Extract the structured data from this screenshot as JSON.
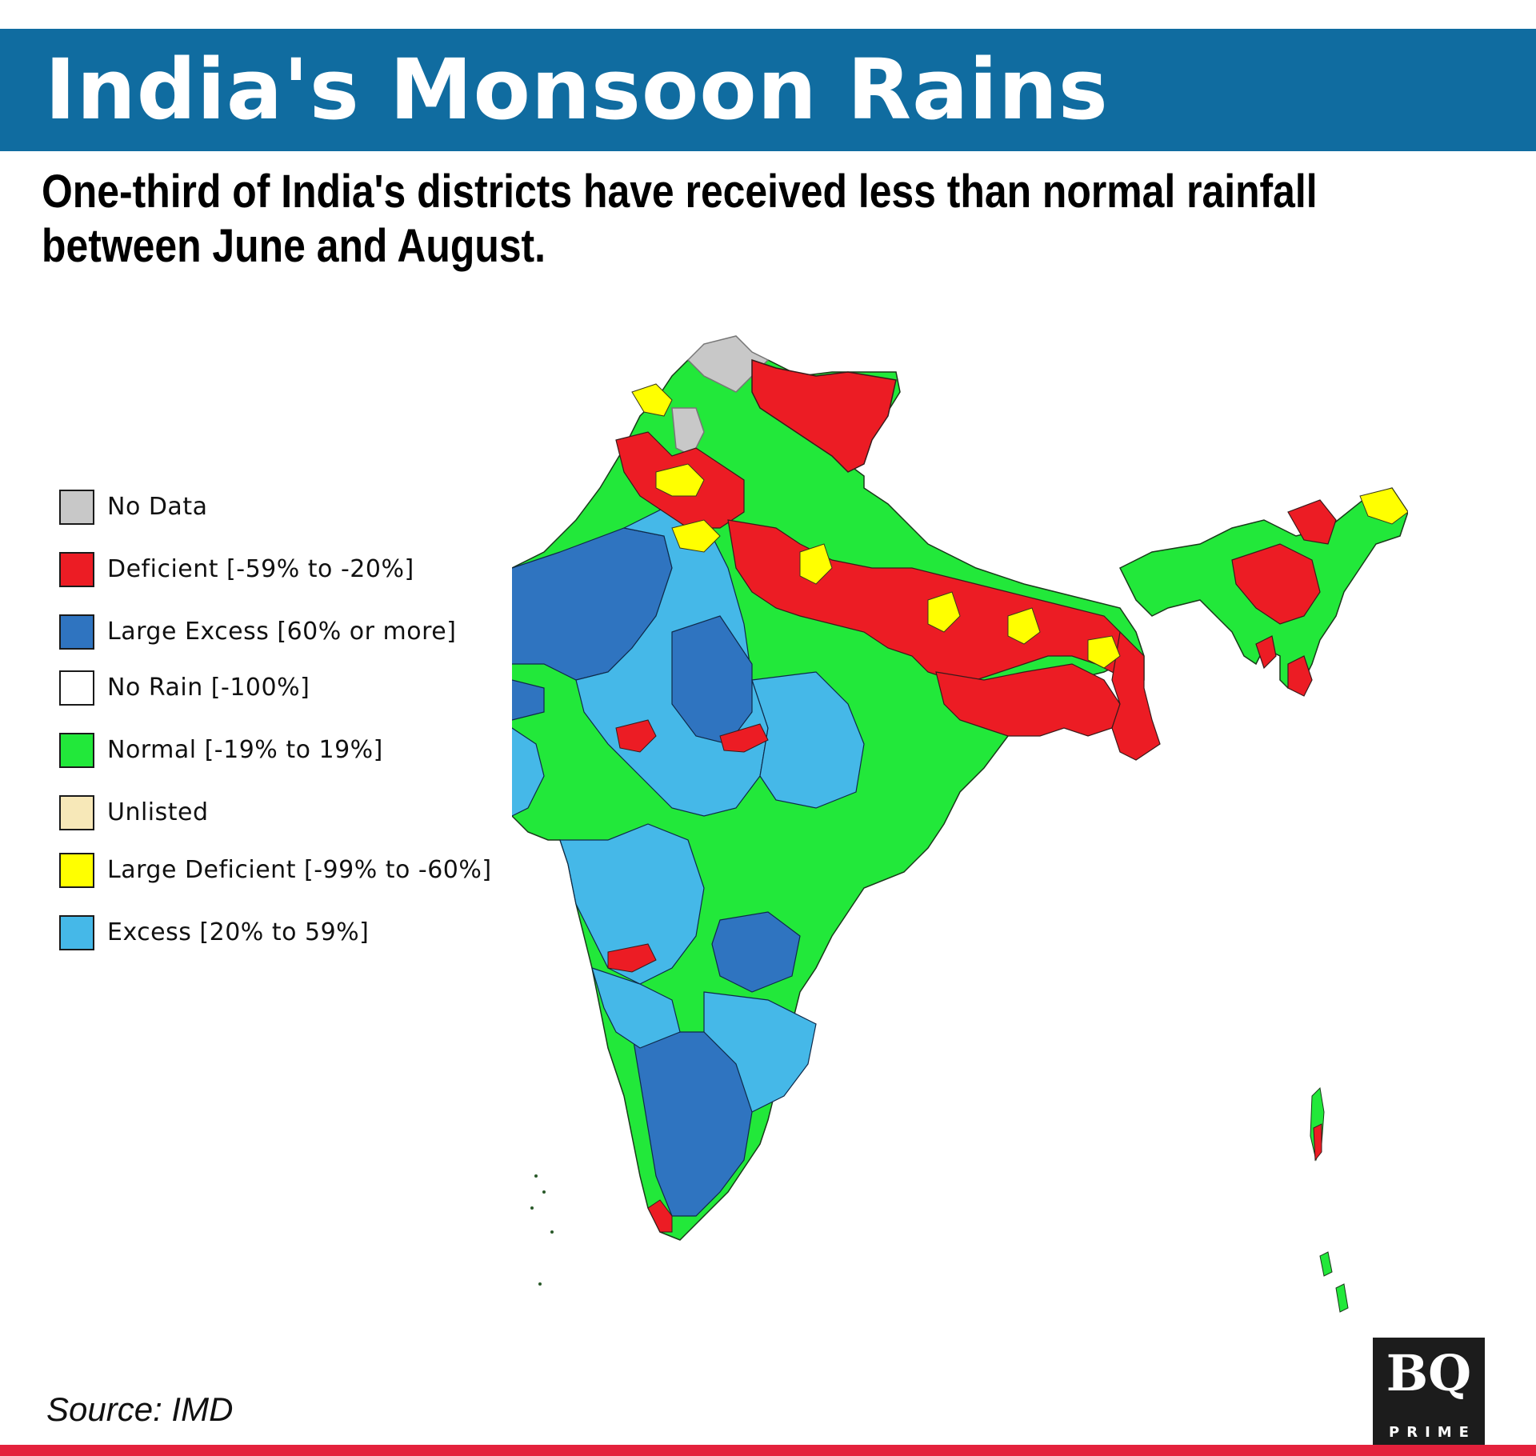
{
  "header": {
    "title": "India's Monsoon Rains",
    "subtitle_line1": "One-third of India's districts have received less than normal rainfall",
    "subtitle_line2": "between June and August."
  },
  "legend": [
    {
      "label": "No Data",
      "color": "#c8c8c8"
    },
    {
      "label": "Deficient [-59% to -20%]",
      "color": "#ec1c24"
    },
    {
      "label": "Large Excess [60% or more]",
      "color": "#2f74c0"
    },
    {
      "label": "No Rain [-100%]",
      "color": "#ffffff"
    },
    {
      "label": "Normal [-19% to 19%]",
      "color": "#22e83a"
    },
    {
      "label": "Unlisted",
      "color": "#f7e8b8"
    },
    {
      "label": "Large Deficient [-99% to -60%]",
      "color": "#ffff00"
    },
    {
      "label": "Excess [20% to 59%]",
      "color": "#45b8e8"
    }
  ],
  "footer": {
    "source": "Source: IMD",
    "logo_mark": "BQ",
    "logo_word": "PRIME"
  }
}
